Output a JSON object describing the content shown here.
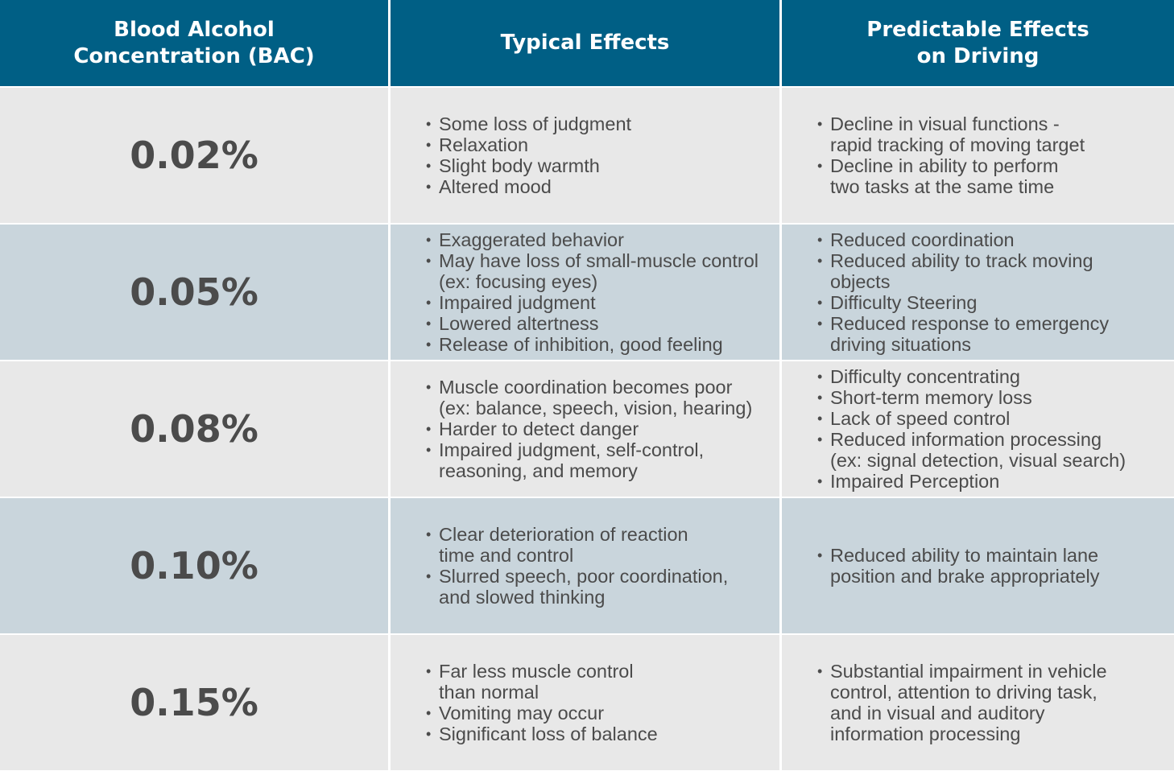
{
  "header": {
    "col1": "Blood Alcohol\nConcentration (BAC)",
    "col2": "Typical Effects",
    "col3": "Predictable Effects\non Driving"
  },
  "rows": [
    {
      "bac": "0.02%",
      "typical": [
        "Some loss of judgment",
        "Relaxation",
        "Slight body warmth",
        "Altered mood"
      ],
      "driving": [
        "Decline in visual functions -\nrapid tracking of moving target",
        "Decline in ability to perform\ntwo tasks at the same time"
      ]
    },
    {
      "bac": "0.05%",
      "typical": [
        "Exaggerated behavior",
        "May have loss of small-muscle control\n(ex: focusing eyes)",
        "Impaired judgment",
        "Lowered altertness",
        "Release of inhibition, good feeling"
      ],
      "driving": [
        "Reduced coordination",
        "Reduced ability to track moving\nobjects",
        "Difficulty Steering",
        "Reduced response to emergency\ndriving situations"
      ]
    },
    {
      "bac": "0.08%",
      "typical": [
        "Muscle coordination becomes poor\n(ex: balance, speech, vision, hearing)",
        "Harder to detect danger",
        "Impaired judgment, self-control,\nreasoning, and memory"
      ],
      "driving": [
        "Difficulty concentrating",
        "Short-term memory loss",
        "Lack of speed control",
        "Reduced information processing\n(ex: signal detection, visual search)",
        "Impaired Perception"
      ]
    },
    {
      "bac": "0.10%",
      "typical": [
        "Clear deterioration of reaction\ntime and control",
        "Slurred speech, poor coordination,\nand slowed thinking"
      ],
      "driving": [
        "Reduced ability to maintain lane\nposition and brake appropriately"
      ]
    },
    {
      "bac": "0.15%",
      "typical": [
        "Far less muscle control\nthan normal",
        "Vomiting may occur",
        "Significant loss of balance"
      ],
      "driving": [
        "Substantial impairment in vehicle\ncontrol, attention to driving task,\nand in visual and auditory\ninformation processing"
      ]
    }
  ]
}
